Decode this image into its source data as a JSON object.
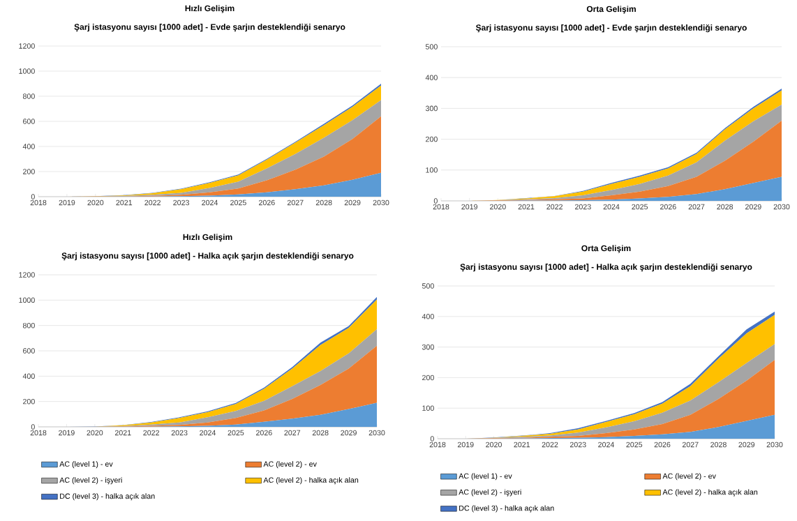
{
  "chart_data": [
    {
      "type": "area",
      "title": "Hızlı Gelişim",
      "subtitle": "Şarj istasyonu sayısı [1000 adet] - Evde şarjın desteklendiği senaryo",
      "categories": [
        "2018",
        "2019",
        "2020",
        "2021",
        "2022",
        "2023",
        "2024",
        "2025",
        "2026",
        "2027",
        "2028",
        "2029",
        "2030"
      ],
      "stacked": true,
      "grid": "y",
      "ylim": [
        0,
        1200
      ],
      "yticks": [
        0,
        200,
        400,
        600,
        800,
        1000,
        1200
      ],
      "series": [
        {
          "color": "#5b9bd5",
          "values": [
            0,
            0,
            0,
            1,
            2,
            4,
            8,
            18,
            35,
            60,
            90,
            135,
            190
          ]
        },
        {
          "color": "#ed7d31",
          "values": [
            0,
            0,
            1,
            2,
            5,
            11,
            27,
            47,
            95,
            155,
            230,
            325,
            450
          ]
        },
        {
          "color": "#a5a5a5",
          "values": [
            0,
            0,
            1,
            3,
            8,
            15,
            35,
            55,
            95,
            125,
            150,
            150,
            130
          ]
        },
        {
          "color": "#ffc000",
          "values": [
            0,
            0,
            1,
            4,
            13,
            30,
            40,
            50,
            70,
            90,
            100,
            105,
            115
          ]
        },
        {
          "color": "#4472c4",
          "values": [
            0,
            0,
            1,
            2,
            3,
            4,
            5,
            6,
            7,
            8,
            10,
            12,
            15
          ]
        }
      ]
    },
    {
      "type": "area",
      "title": "Orta Gelişim",
      "subtitle": "Şarj istasyonu sayısı [1000 adet] - Evde şarjın desteklendiği senaryo",
      "categories": [
        "2018",
        "2019",
        "2020",
        "2021",
        "2022",
        "2023",
        "2024",
        "2025",
        "2026",
        "2027",
        "2028",
        "2029",
        "2030"
      ],
      "stacked": true,
      "grid": "y",
      "ylim": [
        0,
        500
      ],
      "yticks": [
        0,
        100,
        200,
        300,
        400,
        500
      ],
      "series": [
        {
          "color": "#5b9bd5",
          "values": [
            0,
            0,
            0,
            1,
            1,
            2,
            4,
            8,
            13,
            22,
            38,
            58,
            78
          ]
        },
        {
          "color": "#ed7d31",
          "values": [
            0,
            0,
            1,
            2,
            4,
            6,
            14,
            22,
            35,
            56,
            92,
            134,
            182
          ]
        },
        {
          "color": "#a5a5a5",
          "values": [
            0,
            0,
            1,
            2,
            4,
            10,
            17,
            25,
            34,
            47,
            65,
            66,
            52
          ]
        },
        {
          "color": "#ffc000",
          "values": [
            0,
            0,
            1,
            3,
            6,
            12,
            20,
            23,
            23,
            27,
            37,
            42,
            46
          ]
        },
        {
          "color": "#4472c4",
          "values": [
            0,
            0,
            0,
            1,
            1,
            2,
            3,
            4,
            4,
            4,
            4,
            5,
            6
          ]
        }
      ]
    },
    {
      "type": "area",
      "title": "Hızlı Gelişim",
      "subtitle": "Şarj istasyonu sayısı [1000 adet] - Halka açık şarjın desteklendiği senaryo",
      "categories": [
        "2018",
        "2019",
        "2020",
        "2021",
        "2022",
        "2023",
        "2024",
        "2025",
        "2026",
        "2027",
        "2028",
        "2029",
        "2030"
      ],
      "stacked": true,
      "grid": "y",
      "legend": "bottom",
      "ylim": [
        0,
        1200
      ],
      "yticks": [
        0,
        200,
        400,
        600,
        800,
        1000,
        1200
      ],
      "series": [
        {
          "name": "AC (level 1) - ev",
          "color": "#5b9bd5",
          "values": [
            0,
            0,
            0,
            1,
            2,
            4,
            8,
            18,
            40,
            65,
            95,
            140,
            190
          ]
        },
        {
          "name": "AC (level 2) - ev",
          "color": "#ed7d31",
          "values": [
            0,
            0,
            0,
            2,
            6,
            11,
            27,
            52,
            90,
            155,
            235,
            320,
            450
          ]
        },
        {
          "name": "AC (level 2) - işyeri",
          "color": "#a5a5a5",
          "values": [
            0,
            0,
            1,
            3,
            10,
            20,
            40,
            55,
            75,
            100,
            110,
            120,
            130
          ]
        },
        {
          "name": "AC (level 2) - halka açık alan",
          "color": "#ffc000",
          "values": [
            0,
            0,
            1,
            6,
            17,
            35,
            40,
            55,
            95,
            140,
            205,
            200,
            235
          ]
        },
        {
          "name": "DC (level 3) - halka açık alan",
          "color": "#4472c4",
          "values": [
            0,
            0,
            1,
            2,
            3,
            5,
            7,
            8,
            10,
            12,
            20,
            15,
            20
          ]
        }
      ]
    },
    {
      "type": "area",
      "title": "Orta Gelişim",
      "subtitle": "Şarj istasyonu sayısı [1000 adet] - Halka açık şarjın desteklendiği senaryo",
      "categories": [
        "2018",
        "2019",
        "2020",
        "2021",
        "2022",
        "2023",
        "2024",
        "2025",
        "2026",
        "2027",
        "2028",
        "2029",
        "2030"
      ],
      "stacked": true,
      "grid": "y",
      "legend": "bottom",
      "ylim": [
        0,
        500
      ],
      "yticks": [
        0,
        100,
        200,
        300,
        400,
        500
      ],
      "series": [
        {
          "name": "AC (level 1) - ev",
          "color": "#5b9bd5",
          "values": [
            0,
            0,
            0,
            1,
            2,
            3,
            5,
            9,
            14,
            22,
            38,
            58,
            78
          ]
        },
        {
          "name": "AC (level 2) - ev",
          "color": "#ed7d31",
          "values": [
            0,
            0,
            1,
            2,
            4,
            6,
            13,
            21,
            34,
            56,
            92,
            132,
            180
          ]
        },
        {
          "name": "AC (level 2) - işyeri",
          "color": "#a5a5a5",
          "values": [
            0,
            0,
            1,
            3,
            4,
            11,
            19,
            27,
            37,
            47,
            55,
            58,
            52
          ]
        },
        {
          "name": "AC (level 2) - halka açık alan",
          "color": "#ffc000",
          "values": [
            0,
            0,
            1,
            3,
            6,
            10,
            18,
            23,
            30,
            47,
            77,
            97,
            95
          ]
        },
        {
          "name": "DC (level 3) - halka açık alan",
          "color": "#4472c4",
          "values": [
            0,
            0,
            1,
            1,
            2,
            4,
            3,
            4,
            5,
            8,
            8,
            13,
            11
          ]
        }
      ]
    }
  ]
}
